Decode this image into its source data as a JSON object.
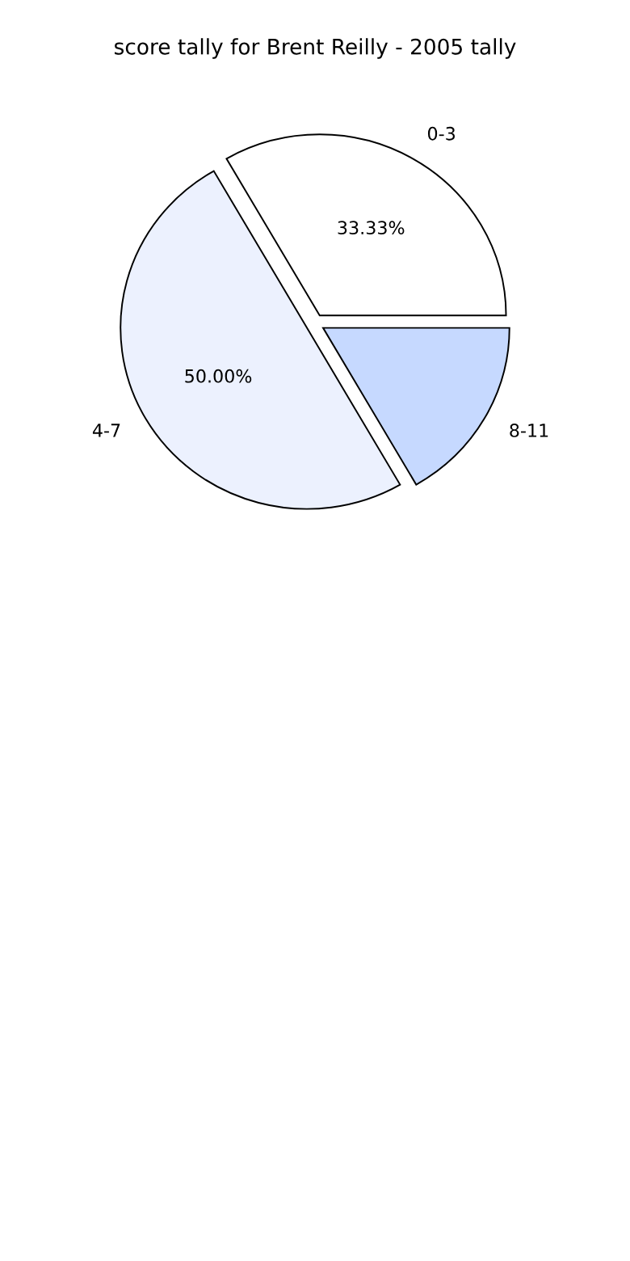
{
  "chart_data": {
    "type": "pie",
    "title": "score tally for Brent Reilly - 2005 tally",
    "categories": [
      "0-3",
      "4-7",
      "8-11"
    ],
    "values": [
      33.33,
      50,
      16.67
    ],
    "colors": [
      "#ffffff",
      "#ecf1fe",
      "#c6d9ff"
    ],
    "value_labels": [
      "33.33%",
      "50.00%",
      null
    ]
  }
}
